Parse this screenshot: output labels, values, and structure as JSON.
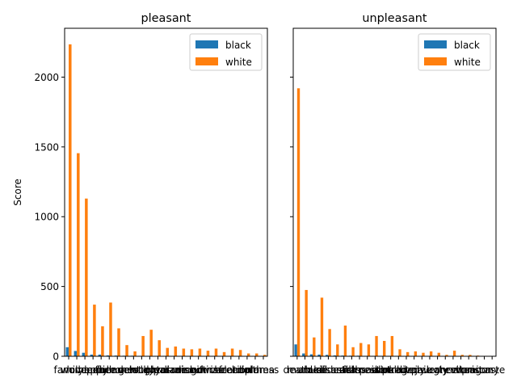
{
  "chart_data": {
    "type": "bar",
    "ylabel": "Score",
    "ylim": [
      0,
      2350
    ],
    "yticks": [
      0,
      500,
      1000,
      1500,
      2000
    ],
    "sharey": true,
    "grid": false,
    "legend_placement": "top-right",
    "colors": {
      "black": "#1f77b4",
      "white": "#ff7f0e"
    },
    "panels": [
      {
        "title": "pleasant",
        "categories": [
          "family",
          "love",
          "wonderful",
          "happy",
          "peace",
          "friend",
          "heaven",
          "honest",
          "gentle",
          "lucky",
          "laughter",
          "loyal",
          "pleasure",
          "paradise",
          "diamond",
          "rainbow",
          "gift",
          "sunrise",
          "miracle",
          "cheer",
          "vacation",
          "freedom",
          "health",
          "diploma",
          "caress"
        ],
        "series": [
          {
            "name": "black",
            "values": [
              65,
              38,
              25,
              12,
              12,
              6,
              5,
              4,
              4,
              3,
              3,
              3,
              3,
              2,
              2,
              2,
              2,
              2,
              2,
              2,
              2,
              1,
              1,
              1,
              1
            ]
          },
          {
            "name": "white",
            "values": [
              2235,
              1455,
              1130,
              370,
              215,
              385,
              200,
              80,
              35,
              145,
              190,
              115,
              60,
              70,
              55,
              50,
              55,
              40,
              55,
              30,
              55,
              45,
              20,
              20,
              10
            ]
          }
        ]
      },
      {
        "title": "unpleasant",
        "categories": [
          "death",
          "murder",
          "abuse",
          "kill",
          "accident",
          "disaster",
          "crash",
          "filth",
          "sickness",
          "assault",
          "poison",
          "stink",
          "hatred",
          "pollute",
          "tragedy",
          "divorce",
          "jail",
          "poverty",
          "ugly",
          "cancer",
          "evil",
          "rotten",
          "vomit",
          "prison",
          "agony",
          "caste"
        ],
        "series": [
          {
            "name": "black",
            "values": [
              85,
              20,
              14,
              12,
              10,
              6,
              5,
              4,
              4,
              3,
              3,
              3,
              3,
              3,
              2,
              2,
              2,
              2,
              2,
              2,
              2,
              1,
              1,
              1,
              1,
              1
            ]
          },
          {
            "name": "white",
            "values": [
              1920,
              475,
              135,
              420,
              195,
              85,
              220,
              65,
              95,
              85,
              145,
              110,
              145,
              50,
              30,
              35,
              25,
              35,
              25,
              10,
              40,
              10,
              10,
              5,
              3,
              2
            ]
          }
        ]
      }
    ]
  }
}
